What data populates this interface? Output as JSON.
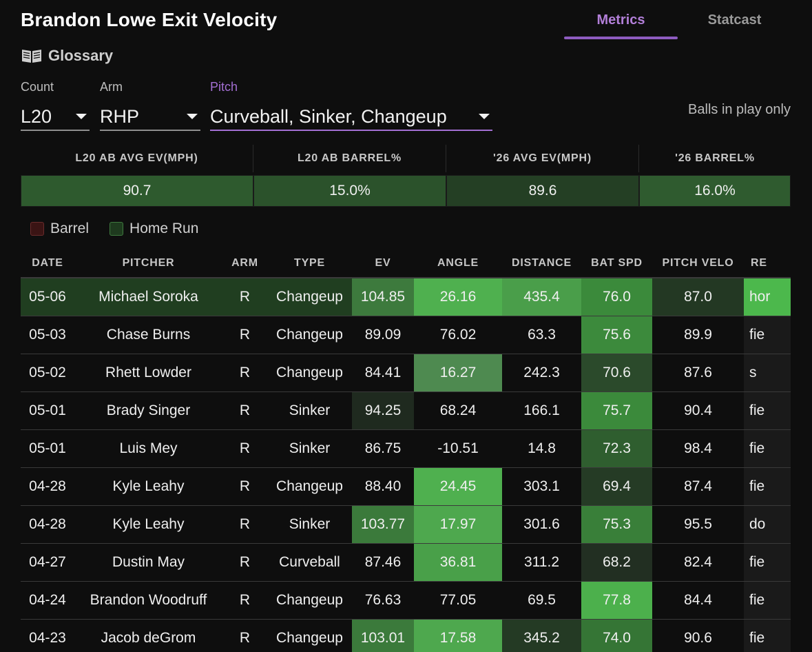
{
  "header": {
    "title": "Brandon Lowe Exit Velocity",
    "tabs": [
      {
        "label": "Metrics",
        "active": true
      },
      {
        "label": "Statcast",
        "active": false
      }
    ],
    "glossary_label": "Glossary"
  },
  "filters": {
    "count": {
      "label": "Count",
      "value": "L20"
    },
    "arm": {
      "label": "Arm",
      "value": "RHP"
    },
    "pitch": {
      "label": "Pitch",
      "value": "Curveball, Sinker, Changeup"
    },
    "balls_in_play_label": "Balls in play only"
  },
  "summary": {
    "headers": [
      "L20 AB AVG EV(MPH)",
      "L20 AB BARREL%",
      "'26 AVG EV(MPH)",
      "'26 BARREL%"
    ],
    "values": [
      "90.7",
      "15.0%",
      "89.6",
      "16.0%"
    ]
  },
  "legend": [
    {
      "label": "Barrel",
      "color": "#3a1414",
      "border": "#6a2c2c"
    },
    {
      "label": "Home Run",
      "color": "#1e3a1e",
      "border": "#3f7a3f"
    }
  ],
  "table": {
    "columns": [
      "DATE",
      "PITCHER",
      "ARM",
      "TYPE",
      "EV",
      "ANGLE",
      "DISTANCE",
      "BAT SPD",
      "PITCH VELO",
      "RE"
    ],
    "rows": [
      {
        "date": "05-06",
        "pitcher": "Michael Soroka",
        "arm": "R",
        "type": "Changeup",
        "ev": "104.85",
        "angle": "26.16",
        "distance": "435.4",
        "bat_spd": "76.0",
        "pitch_velo": "87.0",
        "result": "hor",
        "home_run": true,
        "colors": {
          "ev": "#3d7a3d",
          "angle": "#4fb04f",
          "distance": "#4a9e4a",
          "bat_spd": "#3b8a3b",
          "pitch_velo": "#233823",
          "result": "#4cb84c"
        }
      },
      {
        "date": "05-03",
        "pitcher": "Chase Burns",
        "arm": "R",
        "type": "Changeup",
        "ev": "89.09",
        "angle": "76.02",
        "distance": "63.3",
        "bat_spd": "75.6",
        "pitch_velo": "89.9",
        "result": "fie",
        "home_run": false,
        "colors": {
          "ev": "",
          "angle": "",
          "distance": "",
          "bat_spd": "#3c8a3c",
          "pitch_velo": "",
          "result": "#1a1a1a"
        }
      },
      {
        "date": "05-02",
        "pitcher": "Rhett Lowder",
        "arm": "R",
        "type": "Changeup",
        "ev": "84.41",
        "angle": "16.27",
        "distance": "242.3",
        "bat_spd": "70.6",
        "pitch_velo": "87.6",
        "result": "s",
        "home_run": false,
        "colors": {
          "ev": "",
          "angle": "#4e8a50",
          "distance": "",
          "bat_spd": "#2b4a2b",
          "pitch_velo": "",
          "result": "#1a1a1a"
        }
      },
      {
        "date": "05-01",
        "pitcher": "Brady Singer",
        "arm": "R",
        "type": "Sinker",
        "ev": "94.25",
        "angle": "68.24",
        "distance": "166.1",
        "bat_spd": "75.7",
        "pitch_velo": "90.4",
        "result": "fie",
        "home_run": false,
        "colors": {
          "ev": "#1f2a1f",
          "angle": "",
          "distance": "",
          "bat_spd": "#3b8a3b",
          "pitch_velo": "",
          "result": "#1a1a1a"
        }
      },
      {
        "date": "05-01",
        "pitcher": "Luis Mey",
        "arm": "R",
        "type": "Sinker",
        "ev": "86.75",
        "angle": "-10.51",
        "distance": "14.8",
        "bat_spd": "72.3",
        "pitch_velo": "98.4",
        "result": "fie",
        "home_run": false,
        "colors": {
          "ev": "",
          "angle": "",
          "distance": "",
          "bat_spd": "#2f5e2f",
          "pitch_velo": "",
          "result": "#1a1a1a"
        }
      },
      {
        "date": "04-28",
        "pitcher": "Kyle Leahy",
        "arm": "R",
        "type": "Changeup",
        "ev": "88.40",
        "angle": "24.45",
        "distance": "303.1",
        "bat_spd": "69.4",
        "pitch_velo": "87.4",
        "result": "fie",
        "home_run": false,
        "colors": {
          "ev": "",
          "angle": "#4fb04f",
          "distance": "",
          "bat_spd": "#253b25",
          "pitch_velo": "",
          "result": "#1a1a1a"
        }
      },
      {
        "date": "04-28",
        "pitcher": "Kyle Leahy",
        "arm": "R",
        "type": "Sinker",
        "ev": "103.77",
        "angle": "17.97",
        "distance": "301.6",
        "bat_spd": "75.3",
        "pitch_velo": "95.5",
        "result": "do",
        "home_run": false,
        "colors": {
          "ev": "#3b7a3b",
          "angle": "#4ea84e",
          "distance": "",
          "bat_spd": "#397f39",
          "pitch_velo": "",
          "result": "#1a1a1a"
        }
      },
      {
        "date": "04-27",
        "pitcher": "Dustin May",
        "arm": "R",
        "type": "Curveball",
        "ev": "87.46",
        "angle": "36.81",
        "distance": "311.2",
        "bat_spd": "68.2",
        "pitch_velo": "82.4",
        "result": "fie",
        "home_run": false,
        "colors": {
          "ev": "",
          "angle": "#49a049",
          "distance": "",
          "bat_spd": "#222f22",
          "pitch_velo": "",
          "result": "#1a1a1a"
        }
      },
      {
        "date": "04-24",
        "pitcher": "Brandon Woodruff",
        "arm": "R",
        "type": "Changeup",
        "ev": "76.63",
        "angle": "77.05",
        "distance": "69.5",
        "bat_spd": "77.8",
        "pitch_velo": "84.4",
        "result": "fie",
        "home_run": false,
        "colors": {
          "ev": "",
          "angle": "",
          "distance": "",
          "bat_spd": "#4cb04c",
          "pitch_velo": "",
          "result": "#1a1a1a"
        }
      },
      {
        "date": "04-23",
        "pitcher": "Jacob deGrom",
        "arm": "R",
        "type": "Changeup",
        "ev": "103.01",
        "angle": "17.58",
        "distance": "345.2",
        "bat_spd": "74.0",
        "pitch_velo": "90.6",
        "result": "fie",
        "home_run": false,
        "colors": {
          "ev": "#3b7a3b",
          "angle": "#4ea84e",
          "distance": "#243a24",
          "bat_spd": "#357535",
          "pitch_velo": "",
          "result": "#1a1a1a"
        }
      }
    ]
  },
  "colors": {
    "accent": "#a36fd3",
    "summary_bg": [
      "#2e5a2e",
      "#2b522b",
      "#243f24",
      "#2f5b2f"
    ]
  }
}
